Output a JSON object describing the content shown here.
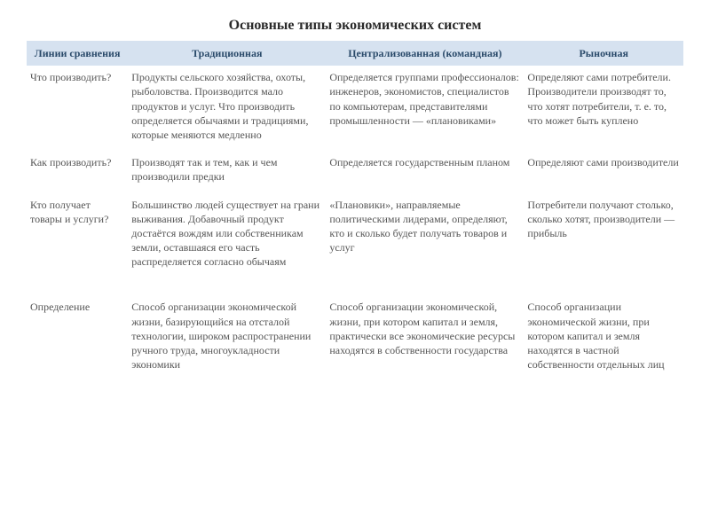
{
  "title": "Основные типы экономических систем",
  "columns": [
    "Линии сравнения",
    "Традиционная",
    "Централизованная (командная)",
    "Рыночная"
  ],
  "rows": [
    {
      "label": "Что производить?",
      "trad": "Продукты сельского хозяйства, охоты, рыболовства. Производится мало продуктов и услуг. Что производить определяется обычаями и традициями, которые меняются медленно",
      "cent": "Определяется группами профессионалов: инженеров, экономистов, специалистов по компьютерам, представителями промышленности — «плановиками»",
      "market": "Определяют сами потребители. Производители производят то, что хотят потребители, т. е. то, что может быть куплено"
    },
    {
      "label": "Как производить?",
      "trad": "Производят так и тем, как и чем производили предки",
      "cent": "Определяется государственным планом",
      "market": "Определяют сами производители"
    },
    {
      "label": "Кто получает товары и услуги?",
      "trad": "Большинство людей существует на грани выживания. Добавочный продукт достаётся вождям или собственникам земли, оставшаяся его часть распределяется согласно обычаям",
      "cent": "«Плановики», направляемые политическими лидерами, определяют, кто и сколько будет получать товаров и услуг",
      "market": "Потребители получают столько, сколько хотят, производители — прибыль"
    },
    {
      "label": "Определение",
      "trad": "Способ организации экономической жизни, базирующийся на отсталой технологии, широком распространении ручного труда, многоукладности экономики",
      "cent": "Способ организации экономической, жизни, при котором капитал и земля, практически все экономические ресурсы находятся в собственности государства",
      "market": "Способ организации экономической жизни, при котором капитал и земля находятся в частной собственности отдельных лиц"
    }
  ]
}
